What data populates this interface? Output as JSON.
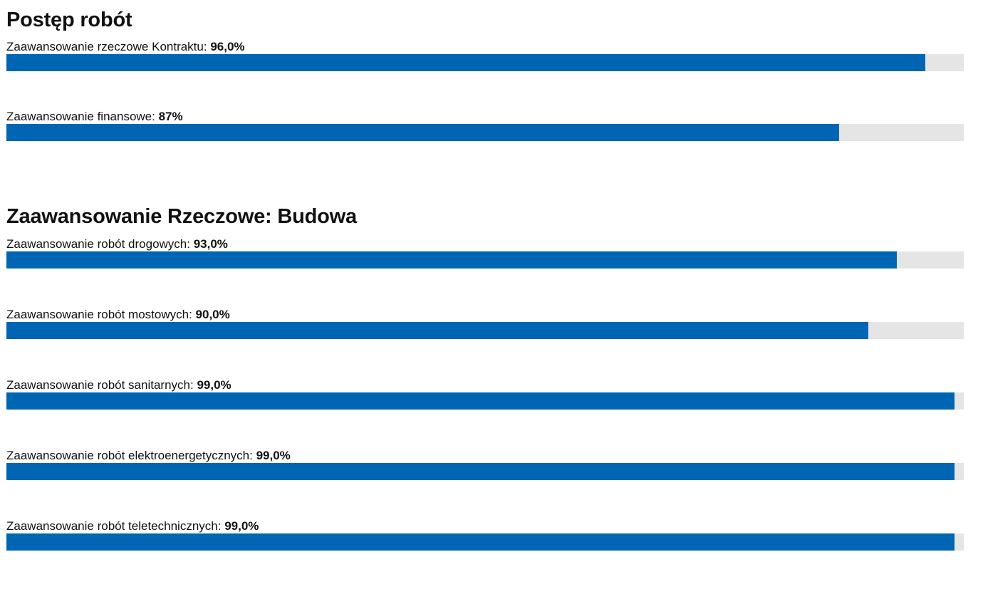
{
  "sections": [
    {
      "title": "Postęp robót",
      "items": [
        {
          "label": "Zaawansowanie rzeczowe Kontraktu: ",
          "value": "96,0%",
          "percent": 96.0
        },
        {
          "label": "Zaawansowanie finansowe: ",
          "value": "87%",
          "percent": 87.0
        }
      ]
    },
    {
      "title": "Zaawansowanie Rzeczowe: Budowa",
      "items": [
        {
          "label": "Zaawansowanie robót drogowych: ",
          "value": "93,0%",
          "percent": 93.0
        },
        {
          "label": "Zaawansowanie robót mostowych: ",
          "value": "90,0%",
          "percent": 90.0
        },
        {
          "label": "Zaawansowanie robót sanitarnych: ",
          "value": "99,0%",
          "percent": 99.0
        },
        {
          "label": "Zaawansowanie robót elektroenergetycznych: ",
          "value": "99,0%",
          "percent": 99.0
        },
        {
          "label": "Zaawansowanie robót teletechnicznych: ",
          "value": "99,0%",
          "percent": 99.0
        }
      ]
    }
  ],
  "colors": {
    "fill": "#0066b3",
    "track": "#e5e5e5",
    "text": "#111111"
  }
}
